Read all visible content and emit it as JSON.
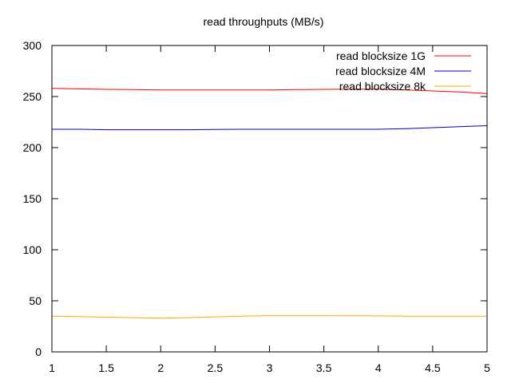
{
  "chart_data": {
    "type": "line",
    "title": "read throughputs (MB/s)",
    "xlabel": "",
    "ylabel": "",
    "xlim": [
      1,
      5
    ],
    "ylim": [
      0,
      300
    ],
    "xticks": [
      1,
      1.5,
      2,
      2.5,
      3,
      3.5,
      4,
      4.5,
      5
    ],
    "xtick_labels": [
      "1",
      "1.5",
      "2",
      "2.5",
      "3",
      "3.5",
      "4",
      "4.5",
      "5"
    ],
    "yticks": [
      0,
      50,
      100,
      150,
      200,
      250,
      300
    ],
    "ytick_labels": [
      "0",
      "50",
      "100",
      "150",
      "200",
      "250",
      "300"
    ],
    "grid": false,
    "legend_position": "top-right",
    "series": [
      {
        "name": "read blocksize 1G",
        "color": "#ff0000",
        "x": [
          1,
          1.25,
          1.5,
          1.75,
          2,
          2.25,
          2.5,
          2.75,
          3,
          3.25,
          3.5,
          3.75,
          4,
          4.25,
          4.5,
          4.75,
          5
        ],
        "y": [
          258,
          257.5,
          257,
          256.8,
          256.5,
          256.5,
          256.5,
          256.5,
          256.5,
          256.8,
          257,
          257.2,
          257.2,
          256.5,
          255.5,
          254.5,
          253
        ]
      },
      {
        "name": "read blocksize 4M",
        "color": "#0000cc",
        "x": [
          1,
          1.25,
          1.5,
          1.75,
          2,
          2.25,
          2.5,
          2.75,
          3,
          3.25,
          3.5,
          3.75,
          4,
          4.25,
          4.5,
          4.75,
          5
        ],
        "y": [
          218,
          218,
          217.5,
          217.5,
          217.5,
          217.5,
          217.8,
          218,
          218,
          218,
          218,
          218,
          218,
          218.5,
          219.5,
          220.5,
          221.5
        ]
      },
      {
        "name": "read blocksize 8k",
        "color": "#ffa500",
        "x": [
          1,
          1.25,
          1.5,
          1.75,
          2,
          2.25,
          2.5,
          2.75,
          3,
          3.25,
          3.5,
          3.75,
          4,
          4.25,
          4.5,
          4.75,
          5
        ],
        "y": [
          35,
          34.5,
          34,
          33.5,
          33,
          33.5,
          34.3,
          35,
          35.5,
          35.5,
          35.5,
          35.3,
          35.2,
          35,
          35,
          35,
          35
        ]
      }
    ]
  }
}
